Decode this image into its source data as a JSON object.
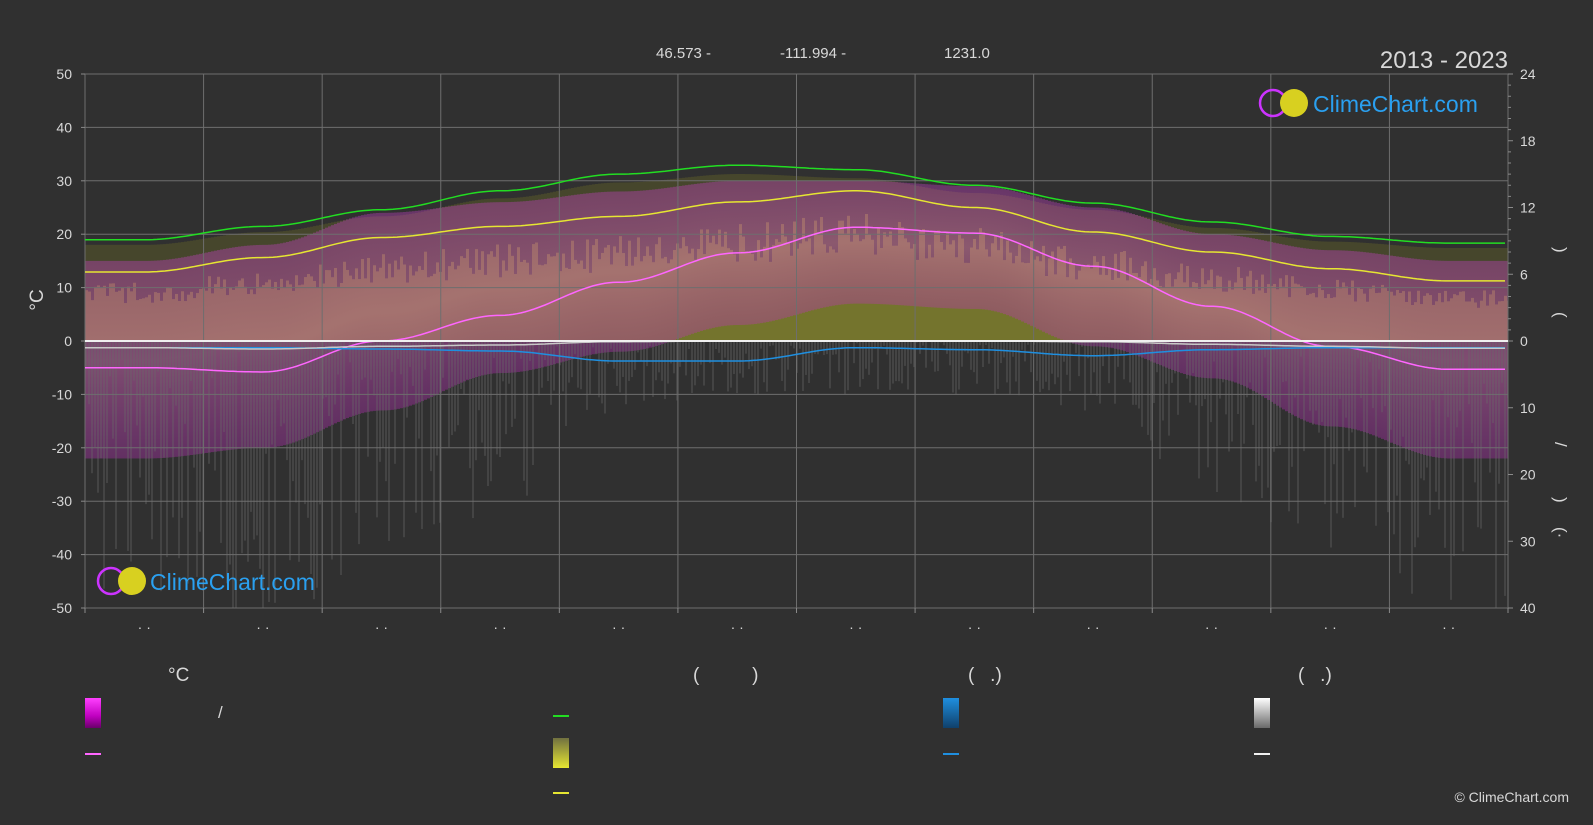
{
  "header": {
    "latitude": "46.573 -",
    "longitude": "-111.994 -",
    "elevation": "1231.0",
    "period": "2013 - 2023"
  },
  "logo": {
    "text": "ClimeChart.com"
  },
  "copyright": "© ClimeChart.com",
  "legend": {
    "temp_title": "°C",
    "sun_title": "(          )",
    "rain_title": "(   .)",
    "snow_title": "(   .)",
    "temp_slash": "/"
  },
  "colors": {
    "background": "#303030",
    "daylight": "#22dd22",
    "sunshine": "#e6e632",
    "mean_temp": "#ff66ff",
    "temp_range": "#ff00ff",
    "rain": "#1f8fe0",
    "snow": "#f0f0f0"
  },
  "chart_data": {
    "type": "area",
    "left_axis": {
      "label": "°C",
      "ylim": [
        -50,
        50
      ],
      "ticks": [
        50,
        40,
        30,
        20,
        10,
        0,
        -10,
        -20,
        -30,
        -40,
        -50
      ]
    },
    "right_axis_top": {
      "ylim": [
        0,
        24
      ],
      "ticks": [
        24,
        18,
        12,
        6,
        0
      ]
    },
    "right_axis_bottom": {
      "ylim": [
        0,
        40
      ],
      "ticks": [
        10,
        20,
        30,
        40
      ]
    },
    "months": 12,
    "month_labels": [
      "· ·",
      "· ·",
      "· ·",
      "· ·",
      "· ·",
      "· ·",
      "· ·",
      "· ·",
      "· ·",
      "· ·",
      "· ·",
      "· ·"
    ],
    "grid": true,
    "series": [
      {
        "key": "daylight",
        "values": [
          9.1,
          10.3,
          11.8,
          13.5,
          15.0,
          15.8,
          15.4,
          14.0,
          12.4,
          10.7,
          9.4,
          8.8
        ]
      },
      {
        "key": "sunshine",
        "values": [
          6.2,
          7.5,
          9.3,
          10.3,
          11.2,
          12.5,
          13.5,
          12.0,
          9.8,
          8.0,
          6.5,
          5.4
        ]
      },
      {
        "key": "temp_mean",
        "values": [
          -5.0,
          -5.8,
          0.0,
          4.8,
          11.0,
          16.5,
          21.3,
          20.2,
          14.0,
          6.5,
          -1.0,
          -5.3
        ]
      },
      {
        "key": "rain",
        "values": [
          1.0,
          1.0,
          1.2,
          1.5,
          3.0,
          3.0,
          1.0,
          1.3,
          2.2,
          1.3,
          1.0,
          1.0
        ]
      },
      {
        "key": "snow",
        "values": [
          1.0,
          1.2,
          0.8,
          0.6,
          0.1,
          0.0,
          0.0,
          0.0,
          0.1,
          0.5,
          0.8,
          1.1
        ]
      }
    ],
    "temp_band_top": [
      15,
      18,
      24,
      26,
      28,
      30,
      30,
      29,
      25,
      20,
      17,
      15
    ],
    "temp_band_bottom": [
      -22,
      -20,
      -13,
      -6,
      -2,
      3,
      7,
      6,
      -1,
      -7,
      -16,
      -22
    ]
  }
}
